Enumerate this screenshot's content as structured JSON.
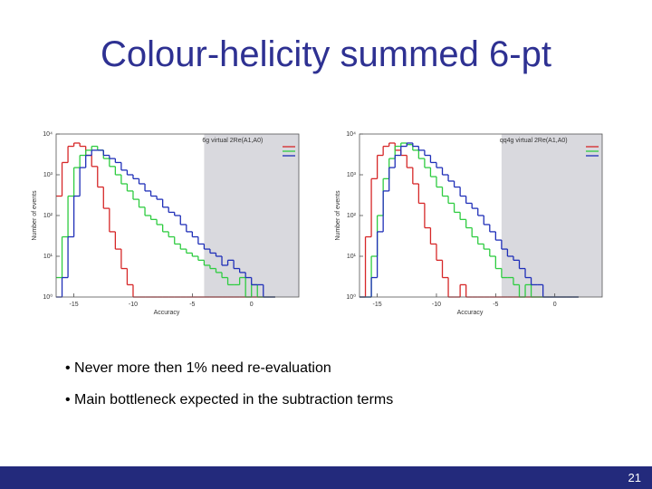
{
  "title": "Colour-helicity summed 6-pt",
  "bullets": [
    "Never more then 1% need re-evaluation",
    "Main bottleneck expected in the subtraction terms"
  ],
  "page_number": "21",
  "chart_data": [
    {
      "type": "histogram",
      "title": "6g virtual 2Re(A1,A0)",
      "xlabel": "Accuracy",
      "ylabel": "Number of events",
      "log_y": true,
      "xlim": [
        -16.5,
        4
      ],
      "ylim": [
        1,
        10000
      ],
      "xticks": [
        -15,
        -10,
        -5,
        0
      ],
      "yticks": [
        {
          "value": 1,
          "label": "10⁰"
        },
        {
          "value": 10,
          "label": "10¹"
        },
        {
          "value": 100,
          "label": "10²"
        },
        {
          "value": 1000,
          "label": "10³"
        },
        {
          "value": 10000,
          "label": "10⁴"
        }
      ],
      "shade_from": -4,
      "bins": [
        -16.5,
        -16,
        -15.5,
        -15,
        -14.5,
        -14,
        -13.5,
        -13,
        -12.5,
        -12,
        -11.5,
        -11,
        -10.5,
        -10,
        -9.5,
        -9,
        -8.5,
        -8,
        -7.5,
        -7,
        -6.5,
        -6,
        -5.5,
        -5,
        -4.5,
        -4,
        -3.5,
        -3,
        -2.5,
        -2,
        -1.5,
        -1,
        -0.5,
        0,
        0.5,
        1,
        1.5,
        2
      ],
      "series": [
        {
          "color": "#d62728",
          "values": [
            300,
            2000,
            5000,
            6000,
            5000,
            3000,
            1600,
            500,
            150,
            40,
            15,
            5,
            2,
            1,
            0,
            0,
            0,
            0,
            0,
            0,
            0,
            0,
            0,
            0,
            0,
            0,
            0,
            0,
            0,
            0,
            0,
            0,
            0,
            0,
            0,
            0,
            0
          ]
        },
        {
          "color": "#2ecc40",
          "values": [
            3,
            30,
            300,
            1500,
            3000,
            4000,
            5000,
            4000,
            2500,
            1600,
            1000,
            600,
            400,
            250,
            160,
            100,
            80,
            60,
            40,
            30,
            20,
            15,
            12,
            10,
            8,
            6,
            5,
            4,
            3,
            2,
            2,
            3,
            1,
            2,
            1,
            0,
            0
          ]
        },
        {
          "color": "#1f2fb8",
          "values": [
            1,
            3,
            30,
            300,
            1500,
            3000,
            4000,
            4000,
            3000,
            2500,
            2000,
            1300,
            1000,
            800,
            600,
            400,
            300,
            250,
            160,
            120,
            100,
            60,
            40,
            30,
            20,
            15,
            12,
            10,
            6,
            8,
            5,
            4,
            3,
            2,
            2,
            1,
            0
          ]
        }
      ]
    },
    {
      "type": "histogram",
      "title": "qq4g virtual 2Re(A1,A0)",
      "xlabel": "Accuracy",
      "ylabel": "Number of events",
      "log_y": true,
      "xlim": [
        -16.5,
        4
      ],
      "ylim": [
        1,
        10000
      ],
      "xticks": [
        -15,
        -10,
        -5,
        0
      ],
      "yticks": [
        {
          "value": 1,
          "label": "10⁰"
        },
        {
          "value": 10,
          "label": "10¹"
        },
        {
          "value": 100,
          "label": "10²"
        },
        {
          "value": 1000,
          "label": "10³"
        },
        {
          "value": 10000,
          "label": "10⁴"
        }
      ],
      "shade_from": -4.5,
      "bins": [
        -16.5,
        -16,
        -15.5,
        -15,
        -14.5,
        -14,
        -13.5,
        -13,
        -12.5,
        -12,
        -11.5,
        -11,
        -10.5,
        -10,
        -9.5,
        -9,
        -8.5,
        -8,
        -7.5,
        -7,
        -6.5,
        -6,
        -5.5,
        -5,
        -4.5,
        -4,
        -3.5,
        -3,
        -2.5,
        -2,
        -1.5,
        -1,
        -0.5,
        0,
        0.5,
        1,
        1.5,
        2
      ],
      "series": [
        {
          "color": "#d62728",
          "values": [
            1,
            30,
            800,
            3000,
            5000,
            6000,
            4000,
            3000,
            1500,
            600,
            200,
            50,
            20,
            8,
            3,
            1,
            1,
            2,
            1,
            0,
            0,
            0,
            0,
            0,
            0,
            0,
            0,
            0,
            0,
            0,
            0,
            0,
            0,
            0,
            0,
            0,
            0
          ]
        },
        {
          "color": "#2ecc40",
          "values": [
            0,
            1,
            10,
            100,
            800,
            2500,
            5000,
            6000,
            5500,
            4000,
            2500,
            1500,
            900,
            500,
            300,
            200,
            120,
            80,
            50,
            30,
            20,
            15,
            10,
            5,
            3,
            3,
            2,
            1,
            2,
            1,
            0,
            0,
            0,
            0,
            0,
            0,
            0
          ]
        },
        {
          "color": "#1f2fb8",
          "values": [
            0,
            1,
            3,
            40,
            400,
            1500,
            3000,
            5000,
            6000,
            5000,
            4000,
            3000,
            2000,
            1500,
            1000,
            700,
            500,
            300,
            200,
            150,
            100,
            60,
            40,
            25,
            15,
            10,
            8,
            5,
            3,
            2,
            2,
            1,
            1,
            0,
            0,
            0,
            0
          ]
        }
      ]
    }
  ]
}
